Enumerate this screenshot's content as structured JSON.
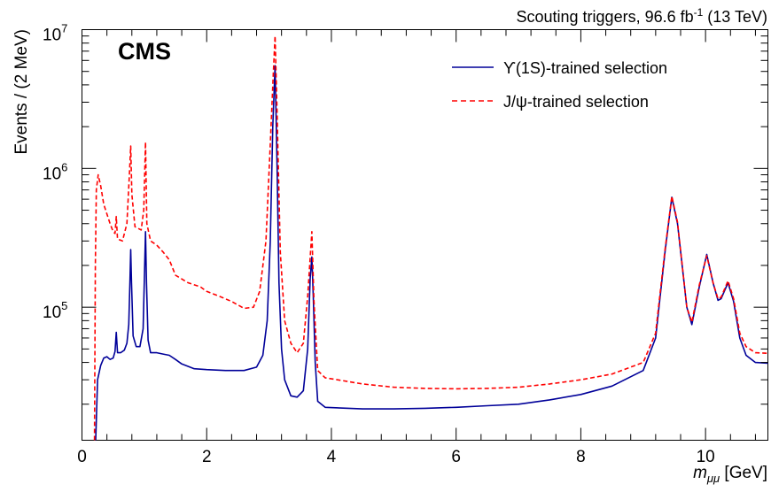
{
  "chart_data": {
    "type": "line",
    "title": "",
    "header_right": {
      "prefix": "Scouting triggers, 96.6 fb",
      "superscript": "-1",
      "suffix": " (13 TeV)"
    },
    "experiment_label": "CMS",
    "xlabel": {
      "variable": "m",
      "subscript": "μμ",
      "unit": " [GeV]"
    },
    "ylabel": "Events / (2 MeV)",
    "xlim": [
      0,
      11
    ],
    "ylim": [
      11000,
      10000000
    ],
    "yscale": "log",
    "x_ticks": [
      "0",
      "2",
      "4",
      "6",
      "8",
      "10"
    ],
    "y_ticks": [
      {
        "value": 100000,
        "base": "10",
        "exp": "5"
      },
      {
        "value": 1000000,
        "base": "10",
        "exp": "6"
      },
      {
        "value": 10000000,
        "base": "10",
        "exp": "7"
      }
    ],
    "legend_position": "top-right",
    "series": [
      {
        "name": "ϒ(1S)-trained selection",
        "color": "#000099",
        "style": "solid",
        "points": [
          [
            0.22,
            11000
          ],
          [
            0.25,
            30000
          ],
          [
            0.3,
            38000
          ],
          [
            0.35,
            43000
          ],
          [
            0.4,
            44000
          ],
          [
            0.45,
            42000
          ],
          [
            0.5,
            43000
          ],
          [
            0.53,
            48000
          ],
          [
            0.55,
            66000
          ],
          [
            0.57,
            47000
          ],
          [
            0.62,
            47000
          ],
          [
            0.68,
            49000
          ],
          [
            0.72,
            55000
          ],
          [
            0.75,
            75000
          ],
          [
            0.77,
            160000
          ],
          [
            0.782,
            260000
          ],
          [
            0.795,
            150000
          ],
          [
            0.82,
            62000
          ],
          [
            0.87,
            52000
          ],
          [
            0.93,
            52000
          ],
          [
            0.98,
            70000
          ],
          [
            1.0,
            160000
          ],
          [
            1.019,
            350000
          ],
          [
            1.035,
            150000
          ],
          [
            1.06,
            58000
          ],
          [
            1.1,
            47000
          ],
          [
            1.2,
            47000
          ],
          [
            1.3,
            46000
          ],
          [
            1.4,
            45000
          ],
          [
            1.5,
            42000
          ],
          [
            1.6,
            39000
          ],
          [
            1.8,
            36000
          ],
          [
            2.0,
            35500
          ],
          [
            2.3,
            35000
          ],
          [
            2.6,
            35000
          ],
          [
            2.8,
            37000
          ],
          [
            2.9,
            45000
          ],
          [
            2.97,
            80000
          ],
          [
            3.02,
            300000
          ],
          [
            3.06,
            2000000
          ],
          [
            3.097,
            5500000
          ],
          [
            3.13,
            1000000
          ],
          [
            3.16,
            150000
          ],
          [
            3.2,
            50000
          ],
          [
            3.25,
            30000
          ],
          [
            3.35,
            23000
          ],
          [
            3.45,
            22500
          ],
          [
            3.55,
            25000
          ],
          [
            3.62,
            50000
          ],
          [
            3.66,
            160000
          ],
          [
            3.686,
            230000
          ],
          [
            3.71,
            120000
          ],
          [
            3.74,
            40000
          ],
          [
            3.78,
            21000
          ],
          [
            3.9,
            19000
          ],
          [
            4.5,
            18500
          ],
          [
            5.0,
            18500
          ],
          [
            5.5,
            18700
          ],
          [
            6.0,
            19000
          ],
          [
            6.5,
            19500
          ],
          [
            7.0,
            20000
          ],
          [
            7.5,
            21500
          ],
          [
            8.0,
            23500
          ],
          [
            8.5,
            27000
          ],
          [
            9.0,
            35000
          ],
          [
            9.2,
            60000
          ],
          [
            9.35,
            250000
          ],
          [
            9.46,
            620000
          ],
          [
            9.55,
            400000
          ],
          [
            9.7,
            100000
          ],
          [
            9.78,
            75000
          ],
          [
            9.9,
            140000
          ],
          [
            10.02,
            240000
          ],
          [
            10.12,
            150000
          ],
          [
            10.2,
            112000
          ],
          [
            10.25,
            115000
          ],
          [
            10.36,
            150000
          ],
          [
            10.45,
            110000
          ],
          [
            10.55,
            60000
          ],
          [
            10.65,
            45000
          ],
          [
            10.8,
            40000
          ],
          [
            11.0,
            39500
          ]
        ]
      },
      {
        "name": "J/ψ-trained selection",
        "color": "#ff0000",
        "style": "dashed",
        "points": [
          [
            0.2,
            11000
          ],
          [
            0.215,
            200000
          ],
          [
            0.23,
            700000
          ],
          [
            0.26,
            900000
          ],
          [
            0.3,
            750000
          ],
          [
            0.35,
            550000
          ],
          [
            0.45,
            400000
          ],
          [
            0.5,
            350000
          ],
          [
            0.53,
            340000
          ],
          [
            0.55,
            450000
          ],
          [
            0.57,
            310000
          ],
          [
            0.65,
            300000
          ],
          [
            0.72,
            400000
          ],
          [
            0.76,
            900000
          ],
          [
            0.782,
            1450000
          ],
          [
            0.8,
            650000
          ],
          [
            0.85,
            380000
          ],
          [
            0.95,
            360000
          ],
          [
            0.99,
            500000
          ],
          [
            1.019,
            1550000
          ],
          [
            1.04,
            400000
          ],
          [
            1.1,
            300000
          ],
          [
            1.2,
            280000
          ],
          [
            1.3,
            250000
          ],
          [
            1.4,
            220000
          ],
          [
            1.5,
            170000
          ],
          [
            1.7,
            150000
          ],
          [
            1.9,
            140000
          ],
          [
            2.0,
            130000
          ],
          [
            2.2,
            120000
          ],
          [
            2.4,
            110000
          ],
          [
            2.6,
            98000
          ],
          [
            2.75,
            100000
          ],
          [
            2.85,
            130000
          ],
          [
            2.95,
            300000
          ],
          [
            3.02,
            1500000
          ],
          [
            3.07,
            5000000
          ],
          [
            3.097,
            9000000
          ],
          [
            3.13,
            2500000
          ],
          [
            3.18,
            250000
          ],
          [
            3.25,
            80000
          ],
          [
            3.35,
            55000
          ],
          [
            3.45,
            47000
          ],
          [
            3.55,
            55000
          ],
          [
            3.62,
            120000
          ],
          [
            3.686,
            350000
          ],
          [
            3.72,
            110000
          ],
          [
            3.78,
            35000
          ],
          [
            3.9,
            31000
          ],
          [
            4.5,
            28000
          ],
          [
            5.0,
            26500
          ],
          [
            5.5,
            26000
          ],
          [
            6.0,
            25800
          ],
          [
            6.5,
            26000
          ],
          [
            7.0,
            26500
          ],
          [
            7.5,
            28000
          ],
          [
            8.0,
            30000
          ],
          [
            8.5,
            33000
          ],
          [
            9.0,
            40000
          ],
          [
            9.2,
            65000
          ],
          [
            9.35,
            260000
          ],
          [
            9.46,
            630000
          ],
          [
            9.55,
            410000
          ],
          [
            9.7,
            100000
          ],
          [
            9.78,
            78000
          ],
          [
            9.9,
            145000
          ],
          [
            10.02,
            235000
          ],
          [
            10.12,
            150000
          ],
          [
            10.2,
            115000
          ],
          [
            10.25,
            118000
          ],
          [
            10.36,
            155000
          ],
          [
            10.45,
            115000
          ],
          [
            10.55,
            65000
          ],
          [
            10.65,
            52000
          ],
          [
            10.8,
            47000
          ],
          [
            11.0,
            46500
          ]
        ]
      }
    ]
  }
}
